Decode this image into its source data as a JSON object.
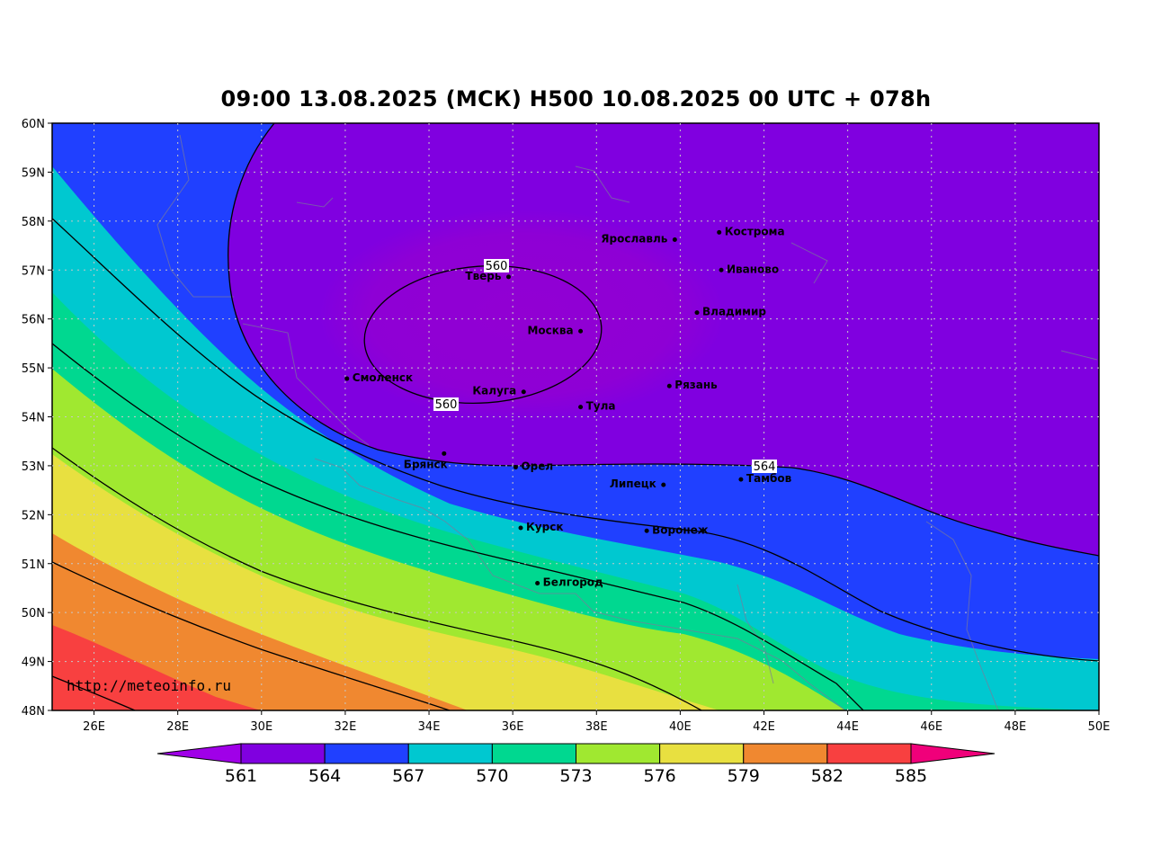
{
  "title": "09:00 13.08.2025 (МСК) H500  10.08.2025 00 UTC + 078h",
  "watermark": "http://meteoinfo.ru",
  "lat_labels": [
    "60N",
    "59N",
    "58N",
    "57N",
    "56N",
    "55N",
    "54N",
    "53N",
    "52N",
    "51N",
    "50N",
    "49N",
    "48N"
  ],
  "lon_labels": [
    "26E",
    "28E",
    "30E",
    "32E",
    "34E",
    "36E",
    "38E",
    "40E",
    "42E",
    "44E",
    "46E",
    "48E",
    "50E"
  ],
  "colorbar": {
    "values": [
      "561",
      "564",
      "567",
      "570",
      "573",
      "576",
      "579",
      "582",
      "585"
    ],
    "colors": [
      "#8000e0",
      "#2040ff",
      "#00c8d0",
      "#00d890",
      "#a0e830",
      "#e8e040",
      "#f08830",
      "#f84040"
    ],
    "under_color": "#a000e8",
    "over_color": "#f0007a"
  },
  "contour_labels": [
    "560",
    "560",
    "564"
  ],
  "cities": [
    {
      "name": "Кострома"
    },
    {
      "name": "Ярославль"
    },
    {
      "name": "Иваново"
    },
    {
      "name": "Тверь"
    },
    {
      "name": "Владимир"
    },
    {
      "name": "Москва"
    },
    {
      "name": "Смоленск"
    },
    {
      "name": "Рязань"
    },
    {
      "name": "Калуга"
    },
    {
      "name": "Тула"
    },
    {
      "name": "Брянск"
    },
    {
      "name": "Орел"
    },
    {
      "name": "Тамбов"
    },
    {
      "name": "Липецк"
    },
    {
      "name": "Курск"
    },
    {
      "name": "Воронеж"
    },
    {
      "name": "Белгород"
    }
  ]
}
